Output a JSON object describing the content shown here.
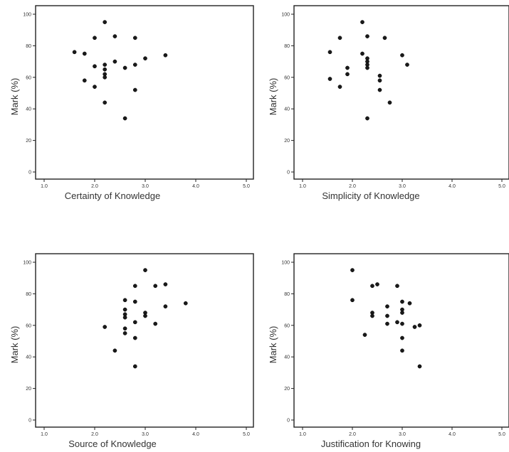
{
  "chart_data": [
    {
      "type": "scatter",
      "xlabel": "Certainty of Knowledge",
      "ylabel": "Mark (%)",
      "xlim": [
        1.0,
        5.0
      ],
      "ylim": [
        0,
        100
      ],
      "xticks": [
        "1.0",
        "2.0",
        "3.0",
        "4.0",
        "5.0"
      ],
      "yticks": [
        "0",
        "20",
        "40",
        "60",
        "80",
        "100"
      ],
      "points": [
        {
          "x": 2.2,
          "y": 95
        },
        {
          "x": 2.4,
          "y": 86
        },
        {
          "x": 2.0,
          "y": 85
        },
        {
          "x": 2.8,
          "y": 85
        },
        {
          "x": 1.6,
          "y": 76
        },
        {
          "x": 1.8,
          "y": 75
        },
        {
          "x": 3.4,
          "y": 74
        },
        {
          "x": 3.0,
          "y": 72
        },
        {
          "x": 2.4,
          "y": 70
        },
        {
          "x": 2.8,
          "y": 68
        },
        {
          "x": 2.2,
          "y": 68
        },
        {
          "x": 2.0,
          "y": 67
        },
        {
          "x": 2.6,
          "y": 66
        },
        {
          "x": 2.2,
          "y": 65
        },
        {
          "x": 2.2,
          "y": 62
        },
        {
          "x": 2.2,
          "y": 60
        },
        {
          "x": 1.8,
          "y": 58
        },
        {
          "x": 2.0,
          "y": 54
        },
        {
          "x": 2.8,
          "y": 52
        },
        {
          "x": 2.2,
          "y": 44
        },
        {
          "x": 2.6,
          "y": 34
        }
      ]
    },
    {
      "type": "scatter",
      "xlabel": "Simplicity of Knowledge",
      "ylabel": "Mark (%)",
      "xlim": [
        1.0,
        5.0
      ],
      "ylim": [
        0,
        100
      ],
      "xticks": [
        "1.0",
        "2.0",
        "3.0",
        "4.0",
        "5.0"
      ],
      "yticks": [
        "0",
        "20",
        "40",
        "60",
        "80",
        "100"
      ],
      "points": [
        {
          "x": 2.2,
          "y": 95
        },
        {
          "x": 2.3,
          "y": 86
        },
        {
          "x": 1.75,
          "y": 85
        },
        {
          "x": 2.65,
          "y": 85
        },
        {
          "x": 1.55,
          "y": 76
        },
        {
          "x": 2.2,
          "y": 75
        },
        {
          "x": 3.0,
          "y": 74
        },
        {
          "x": 2.3,
          "y": 72
        },
        {
          "x": 2.3,
          "y": 70
        },
        {
          "x": 3.1,
          "y": 68
        },
        {
          "x": 2.3,
          "y": 68
        },
        {
          "x": 1.9,
          "y": 66
        },
        {
          "x": 2.3,
          "y": 66
        },
        {
          "x": 1.9,
          "y": 62
        },
        {
          "x": 2.55,
          "y": 61
        },
        {
          "x": 1.55,
          "y": 59
        },
        {
          "x": 2.55,
          "y": 58
        },
        {
          "x": 1.75,
          "y": 54
        },
        {
          "x": 2.55,
          "y": 52
        },
        {
          "x": 2.75,
          "y": 44
        },
        {
          "x": 2.3,
          "y": 34
        }
      ]
    },
    {
      "type": "scatter",
      "xlabel": "Source of Knowledge",
      "ylabel": "Mark (%)",
      "xlim": [
        1.0,
        5.0
      ],
      "ylim": [
        0,
        100
      ],
      "xticks": [
        "1.0",
        "2.0",
        "3.0",
        "4.0",
        "5.0"
      ],
      "yticks": [
        "0",
        "20",
        "40",
        "60",
        "80",
        "100"
      ],
      "points": [
        {
          "x": 3.0,
          "y": 95
        },
        {
          "x": 3.4,
          "y": 86
        },
        {
          "x": 2.8,
          "y": 85
        },
        {
          "x": 3.2,
          "y": 85
        },
        {
          "x": 2.6,
          "y": 76
        },
        {
          "x": 2.8,
          "y": 75
        },
        {
          "x": 3.8,
          "y": 74
        },
        {
          "x": 3.4,
          "y": 72
        },
        {
          "x": 2.6,
          "y": 70
        },
        {
          "x": 3.0,
          "y": 68
        },
        {
          "x": 2.6,
          "y": 67
        },
        {
          "x": 3.0,
          "y": 66
        },
        {
          "x": 2.6,
          "y": 65
        },
        {
          "x": 2.8,
          "y": 62
        },
        {
          "x": 3.2,
          "y": 61
        },
        {
          "x": 2.2,
          "y": 59
        },
        {
          "x": 2.6,
          "y": 58
        },
        {
          "x": 2.6,
          "y": 55
        },
        {
          "x": 2.8,
          "y": 52
        },
        {
          "x": 2.4,
          "y": 44
        },
        {
          "x": 2.8,
          "y": 34
        }
      ]
    },
    {
      "type": "scatter",
      "xlabel": "Justification for Knowing",
      "ylabel": "Mark (%)",
      "xlim": [
        1.0,
        5.0
      ],
      "ylim": [
        0,
        100
      ],
      "xticks": [
        "1.0",
        "2.0",
        "3.0",
        "4.0",
        "5.0"
      ],
      "yticks": [
        "0",
        "20",
        "40",
        "60",
        "80",
        "100"
      ],
      "points": [
        {
          "x": 2.0,
          "y": 95
        },
        {
          "x": 2.5,
          "y": 86
        },
        {
          "x": 2.4,
          "y": 85
        },
        {
          "x": 2.9,
          "y": 85
        },
        {
          "x": 2.0,
          "y": 76
        },
        {
          "x": 3.0,
          "y": 75
        },
        {
          "x": 3.15,
          "y": 74
        },
        {
          "x": 2.7,
          "y": 72
        },
        {
          "x": 3.0,
          "y": 70
        },
        {
          "x": 3.0,
          "y": 68
        },
        {
          "x": 2.4,
          "y": 68
        },
        {
          "x": 2.4,
          "y": 66
        },
        {
          "x": 2.7,
          "y": 66
        },
        {
          "x": 2.9,
          "y": 62
        },
        {
          "x": 2.7,
          "y": 61
        },
        {
          "x": 3.0,
          "y": 61
        },
        {
          "x": 3.35,
          "y": 60
        },
        {
          "x": 3.25,
          "y": 59
        },
        {
          "x": 2.25,
          "y": 54
        },
        {
          "x": 3.0,
          "y": 52
        },
        {
          "x": 3.0,
          "y": 44
        },
        {
          "x": 3.35,
          "y": 34
        }
      ]
    }
  ]
}
